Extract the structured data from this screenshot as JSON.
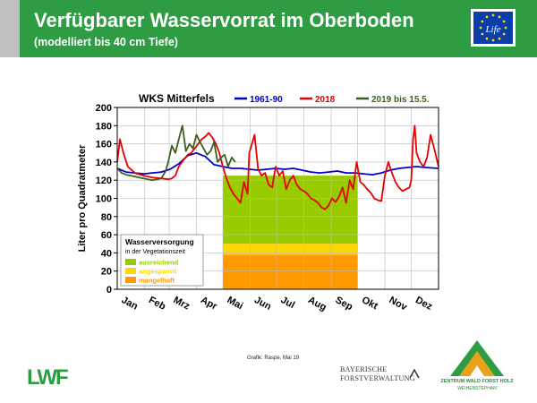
{
  "header": {
    "title": "Verfügbarer Wasservorrat im Oberboden",
    "subtitle": "(modelliert bis 40 cm Tiefe)",
    "eu_logo_text": "Life"
  },
  "chart_data": {
    "type": "line",
    "title": "WKS Mitterfels",
    "ylabel": "Liter pro Quadratmeter",
    "xlabel": "",
    "ylim": [
      0,
      200
    ],
    "yticks": [
      0,
      20,
      40,
      60,
      80,
      100,
      120,
      140,
      160,
      180,
      200
    ],
    "xlim": [
      0,
      365
    ],
    "months": [
      "Jan",
      "Feb",
      "Mrz",
      "Apr",
      "Mai",
      "Jun",
      "Jul",
      "Aug",
      "Sep",
      "Okt",
      "Nov",
      "Dez"
    ],
    "month_starts": [
      0,
      31,
      59,
      90,
      120,
      151,
      181,
      212,
      243,
      273,
      304,
      334
    ],
    "grid": true,
    "legend_position": "top",
    "series": [
      {
        "name": "1961-90",
        "color": "#0000cc",
        "x": [
          0,
          10,
          20,
          30,
          40,
          50,
          60,
          70,
          80,
          90,
          100,
          110,
          120,
          130,
          140,
          150,
          160,
          170,
          180,
          190,
          200,
          210,
          220,
          230,
          240,
          250,
          260,
          270,
          280,
          290,
          300,
          310,
          320,
          330,
          340,
          350,
          365
        ],
        "y": [
          133,
          129,
          128,
          127,
          128,
          129,
          132,
          138,
          147,
          150,
          146,
          137,
          135,
          133,
          133,
          132,
          131,
          132,
          133,
          132,
          133,
          131,
          129,
          128,
          129,
          130,
          128,
          128,
          127,
          126,
          128,
          131,
          133,
          134,
          135,
          134,
          133
        ]
      },
      {
        "name": "2018",
        "color": "#e60000",
        "x": [
          0,
          3,
          7,
          12,
          20,
          30,
          40,
          50,
          58,
          62,
          66,
          70,
          75,
          80,
          84,
          88,
          92,
          96,
          100,
          104,
          108,
          112,
          116,
          120,
          124,
          128,
          132,
          136,
          140,
          144,
          148,
          150,
          153,
          156,
          160,
          164,
          168,
          172,
          176,
          180,
          184,
          188,
          192,
          196,
          200,
          204,
          208,
          212,
          216,
          220,
          224,
          228,
          232,
          236,
          240,
          244,
          248,
          252,
          256,
          260,
          264,
          268,
          272,
          276,
          280,
          284,
          288,
          292,
          296,
          300,
          304,
          308,
          312,
          316,
          320,
          324,
          328,
          332,
          334,
          336,
          338,
          340,
          344,
          348,
          352,
          356,
          360,
          365
        ],
        "y": [
          140,
          165,
          150,
          135,
          128,
          125,
          123,
          122,
          121,
          122,
          125,
          135,
          142,
          148,
          150,
          155,
          160,
          165,
          168,
          172,
          167,
          160,
          150,
          135,
          122,
          112,
          105,
          100,
          95,
          118,
          105,
          150,
          160,
          170,
          132,
          125,
          128,
          115,
          112,
          135,
          125,
          130,
          110,
          120,
          125,
          115,
          110,
          108,
          105,
          100,
          98,
          95,
          90,
          88,
          92,
          100,
          96,
          102,
          112,
          95,
          120,
          110,
          140,
          118,
          115,
          110,
          106,
          100,
          98,
          97,
          125,
          140,
          128,
          118,
          112,
          108,
          110,
          112,
          120,
          165,
          180,
          150,
          140,
          135,
          145,
          170,
          155,
          135
        ]
      },
      {
        "name": "2019 bis 15.5.",
        "color": "#3a5f1e",
        "x": [
          0,
          5,
          10,
          15,
          20,
          25,
          30,
          35,
          40,
          45,
          50,
          55,
          58,
          62,
          66,
          70,
          74,
          78,
          82,
          86,
          90,
          94,
          98,
          102,
          106,
          110,
          114,
          118,
          122,
          126,
          130,
          134
        ],
        "y": [
          133,
          128,
          126,
          125,
          124,
          123,
          122,
          121,
          120,
          121,
          122,
          130,
          140,
          158,
          150,
          165,
          180,
          152,
          160,
          155,
          170,
          162,
          155,
          148,
          152,
          162,
          140,
          145,
          148,
          135,
          145,
          140
        ]
      }
    ],
    "legend_box": {
      "title": "Wasserversorgung",
      "subtitle": "in der Vegetationszeit",
      "items": [
        {
          "label": "ausreichend",
          "color": "#99cc00",
          "text_color": "#99cc00"
        },
        {
          "label": "angespannt",
          "color": "#ffd700",
          "text_color": "#ffd700"
        },
        {
          "label": "mangelhaft",
          "color": "#ff9900",
          "text_color": "#ff9900"
        }
      ]
    },
    "bands": [
      {
        "label": "ausreichend",
        "x0": 120,
        "x1": 273,
        "y0": 50,
        "y1": 125,
        "color": "#99cc00"
      },
      {
        "label": "angespannt",
        "x0": 120,
        "x1": 273,
        "y0": 38,
        "y1": 50,
        "color": "#ffd700"
      },
      {
        "label": "mangelhaft",
        "x0": 120,
        "x1": 273,
        "y0": 0,
        "y1": 38,
        "color": "#ff9900"
      }
    ],
    "credit": "Grafik: Raspe, Mai 19"
  },
  "footer": {
    "lwf_logo": "LWF",
    "bayern_line1": "BAYERISCHE",
    "bayern_line2": "FORSTVERWALTUNG",
    "zentrum_line1": "ZENTRUM WALD FORST HOLZ",
    "zentrum_line2": "WEIHENSTEPHAN"
  }
}
